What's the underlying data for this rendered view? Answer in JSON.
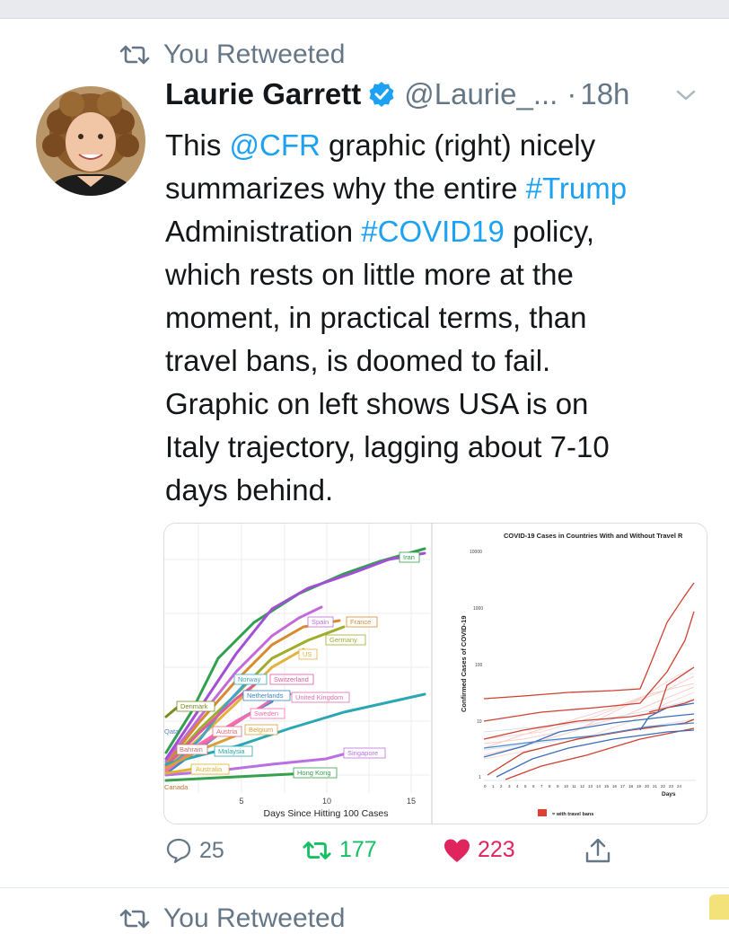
{
  "tweet": {
    "context": "You Retweeted",
    "author_name": "Laurie Garrett",
    "handle": "@Laurie_...",
    "separator": "·",
    "time": "18h",
    "lines": [
      [
        {
          "t": "This "
        },
        {
          "t": "@CFR",
          "link": true
        },
        {
          "t": " graphic (right) nicely"
        }
      ],
      [
        {
          "t": "summarizes why the entire "
        },
        {
          "t": "#Trump",
          "link": true
        }
      ],
      [
        {
          "t": "Administration "
        },
        {
          "t": "#COVID19",
          "link": true
        },
        {
          "t": " policy,"
        }
      ],
      [
        {
          "t": "which rests on little more at the"
        }
      ],
      [
        {
          "t": "moment, in practical terms, than"
        }
      ],
      [
        {
          "t": "travel bans, is doomed to fail."
        }
      ],
      [
        {
          "t": "Graphic on left shows USA is on"
        }
      ],
      [
        {
          "t": "Italy trajectory, lagging about 7-10"
        }
      ],
      [
        {
          "t": "days behind."
        }
      ]
    ],
    "actions": {
      "reply": "25",
      "retweet": "177",
      "like": "223"
    }
  },
  "colors": {
    "link": "#1da1f2",
    "retweet_active": "#17bf63",
    "like_active": "#e0245e",
    "muted": "#657786"
  },
  "left_chart": {
    "xlabel": "Days Since Hitting 100 Cases",
    "xticks": [
      "5",
      "10",
      "15"
    ],
    "labels": {
      "iran": "Iran",
      "spain": "Spain",
      "france": "France",
      "germany": "Germany",
      "us": "US",
      "norway": "Norway",
      "switzerland": "Switzerland",
      "netherlands": "Netherlands",
      "uk": "United Kingdom",
      "sweden": "Sweden",
      "denmark": "Denmark",
      "qatar": "Qatar",
      "austria": "Austria",
      "belgium": "Belgium",
      "bahrain": "Bahrain",
      "malaysia": "Malaysia",
      "singapore": "Singapore",
      "australia": "Australia",
      "hongkong": "Hong Kong",
      "canada": "Canada"
    }
  },
  "right_chart": {
    "title": "COVID-19 Cases in Countries With and Without Travel R",
    "ylabel": "Confirmed Cases of COVID-19",
    "yticks": [
      "10000",
      "1000",
      "100",
      "10",
      "1"
    ],
    "xticks": [
      "0",
      "1",
      "2",
      "3",
      "4",
      "5",
      "6",
      "7",
      "8",
      "9",
      "10",
      "11",
      "12",
      "13",
      "14",
      "15",
      "16",
      "17",
      "18",
      "19",
      "20",
      "21",
      "22",
      "23",
      "24"
    ],
    "xlabel": "Days",
    "legend": "= with travel bans"
  },
  "next_context": "You Retweeted"
}
